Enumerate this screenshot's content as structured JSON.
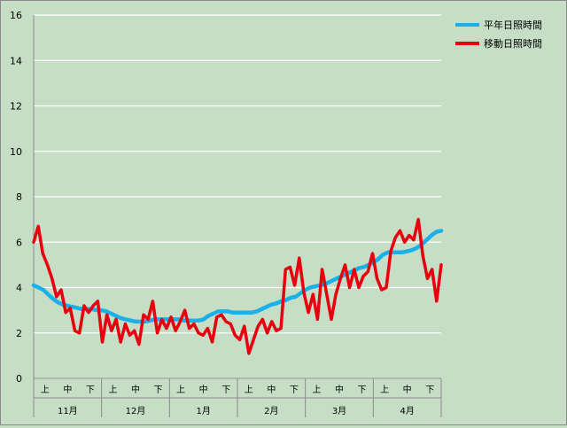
{
  "chart_data": {
    "type": "line",
    "ylim": [
      0,
      16
    ],
    "yticks": [
      0,
      2,
      4,
      6,
      8,
      10,
      12,
      14,
      16
    ],
    "grid": true,
    "legend_position": "top-right",
    "x_period_labels": [
      "上",
      "中",
      "下"
    ],
    "months": [
      "11月",
      "12月",
      "1月",
      "2月",
      "3月",
      "4月"
    ],
    "series": [
      {
        "name": "平年日照時間",
        "color": "#1ab0e8",
        "values": [
          4.1,
          4.0,
          3.9,
          3.7,
          3.5,
          3.35,
          3.25,
          3.2,
          3.15,
          3.1,
          3.05,
          3.05,
          3.05,
          3.0,
          3.0,
          2.95,
          2.85,
          2.75,
          2.65,
          2.6,
          2.55,
          2.5,
          2.5,
          2.5,
          2.55,
          2.6,
          2.6,
          2.6,
          2.6,
          2.6,
          2.6,
          2.55,
          2.55,
          2.55,
          2.55,
          2.6,
          2.75,
          2.85,
          2.95,
          2.95,
          2.95,
          2.9,
          2.9,
          2.9,
          2.9,
          2.9,
          2.95,
          3.05,
          3.15,
          3.25,
          3.3,
          3.4,
          3.45,
          3.55,
          3.6,
          3.75,
          3.9,
          4.0,
          4.05,
          4.1,
          4.15,
          4.25,
          4.35,
          4.45,
          4.55,
          4.65,
          4.75,
          4.85,
          4.9,
          5.0,
          5.1,
          5.25,
          5.45,
          5.55,
          5.55,
          5.55,
          5.55,
          5.6,
          5.65,
          5.75,
          5.9,
          6.1,
          6.3,
          6.45,
          6.5
        ]
      },
      {
        "name": "移動日照時間",
        "color": "#e8000e",
        "values": [
          6.0,
          6.7,
          5.5,
          5.0,
          4.4,
          3.6,
          3.9,
          2.9,
          3.1,
          2.1,
          2.0,
          3.2,
          2.9,
          3.2,
          3.4,
          1.6,
          2.8,
          2.1,
          2.6,
          1.6,
          2.4,
          1.9,
          2.1,
          1.5,
          2.8,
          2.6,
          3.4,
          2.0,
          2.6,
          2.2,
          2.7,
          2.1,
          2.5,
          3.0,
          2.2,
          2.4,
          2.0,
          1.9,
          2.2,
          1.6,
          2.7,
          2.8,
          2.5,
          2.4,
          1.9,
          1.7,
          2.3,
          1.1,
          1.7,
          2.3,
          2.6,
          2.0,
          2.5,
          2.1,
          2.2,
          4.8,
          4.9,
          4.1,
          5.3,
          3.8,
          2.9,
          3.7,
          2.6,
          4.8,
          3.7,
          2.6,
          3.7,
          4.4,
          5.0,
          4.0,
          4.8,
          4.0,
          4.5,
          4.7,
          5.5,
          4.4,
          3.9,
          4.0,
          5.6,
          6.2,
          6.5,
          6.0,
          6.3,
          6.1,
          7.0,
          5.4,
          4.4,
          4.8,
          3.4,
          5.0
        ]
      }
    ]
  }
}
